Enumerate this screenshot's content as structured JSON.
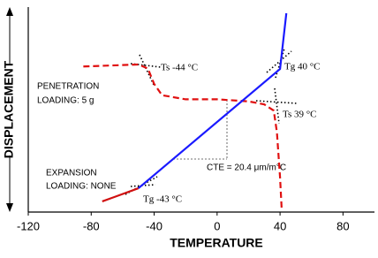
{
  "chart_data": {
    "type": "line",
    "xlabel": "TEMPERATURE",
    "ylabel": "DISPLACEMENT",
    "xlim": [
      -120,
      100
    ],
    "ylim": [
      0,
      100
    ],
    "xticks": [
      -120,
      -80,
      -40,
      0,
      40,
      80
    ],
    "series": [
      {
        "color": "#e01010",
        "style": "dashed",
        "x": [
          -85,
          -50,
          -44,
          -40,
          -35,
          -20,
          0,
          20,
          30,
          36,
          38,
          40,
          41
        ],
        "values": [
          71,
          72,
          70,
          62.5,
          57,
          55,
          55,
          54,
          52.5,
          49.5,
          39,
          17,
          2
        ]
      },
      {
        "color": "#d01010",
        "style": "solid",
        "x": [
          -73,
          -50
        ],
        "values": [
          5.2,
          11.6
        ]
      },
      {
        "color": "#1a1aff",
        "style": "solid",
        "x": [
          -50,
          40,
          44
        ],
        "values": [
          11.6,
          69.8,
          97
        ]
      }
    ],
    "annotations": [
      "PENETRATION",
      "LOADING:  5 g",
      "EXPANSION",
      "LOADING:  NONE",
      "Ts -44 °C",
      "Tg 40 °C",
      "Ts 39 °C",
      "Tg -43 °C",
      "CTE = 20.4 μm/m°C"
    ]
  }
}
